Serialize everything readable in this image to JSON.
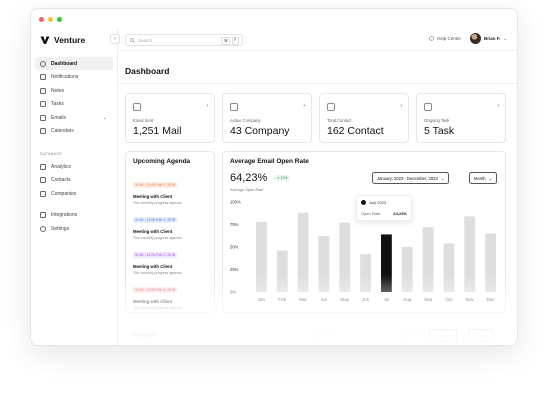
{
  "app": {
    "name": "Venture"
  },
  "window_controls": [
    "close",
    "minimize",
    "maximize"
  ],
  "sidebar": {
    "items": [
      {
        "label": "Dashboard",
        "icon": "dashboard-icon",
        "active": true
      },
      {
        "label": "Notifications",
        "icon": "bell-icon"
      },
      {
        "label": "Notes",
        "icon": "note-icon"
      },
      {
        "label": "Tasks",
        "icon": "checkbox-icon"
      },
      {
        "label": "Emails",
        "icon": "mail-icon",
        "expandable": true
      },
      {
        "label": "Calendars",
        "icon": "calendar-icon"
      }
    ],
    "database_label": "DATABASE",
    "database_items": [
      {
        "label": "Analytics",
        "icon": "analytics-icon"
      },
      {
        "label": "Contacts",
        "icon": "contacts-icon"
      },
      {
        "label": "Companies",
        "icon": "building-icon"
      }
    ],
    "bottom_items": [
      {
        "label": "Integrations",
        "icon": "integrations-icon"
      },
      {
        "label": "Settings",
        "icon": "gear-icon"
      }
    ]
  },
  "topbar": {
    "search_placeholder": "Search",
    "search_shortcut": [
      "⌘",
      "F"
    ],
    "help_label": "Help Center",
    "user_name": "Brian F."
  },
  "page": {
    "title": "Dashboard"
  },
  "stats": [
    {
      "label": "Email Sent",
      "value": "1,251 Mail",
      "icon": "mail-icon"
    },
    {
      "label": "Active Company",
      "value": "43 Company",
      "icon": "briefcase-icon"
    },
    {
      "label": "Total Contact",
      "value": "162 Contact",
      "icon": "contact-card-icon"
    },
    {
      "label": "Ongoing Task",
      "value": "5 Task",
      "icon": "clipboard-icon"
    }
  ],
  "agenda": {
    "title": "Upcoming Agenda",
    "items": [
      {
        "time": "11:00 - 12:00 Feb 2, 2078",
        "title": "Meeting with Client",
        "subtitle": "This monthly progress agenda",
        "color": "#e8743b",
        "bg": "#fdeee5"
      },
      {
        "time": "11:00 - 12:00 Feb 2, 2078",
        "title": "Meeting with Client",
        "subtitle": "This monthly progress agenda",
        "color": "#3b6fe8",
        "bg": "#e6edfd"
      },
      {
        "time": "11:00 - 12:00 Feb 2, 2078",
        "title": "Meeting with Client",
        "subtitle": "This monthly progress agenda",
        "color": "#9b4be0",
        "bg": "#f2e8fc"
      },
      {
        "time": "11:00 - 12:00 Feb 2, 2078",
        "title": "Meeting with Client",
        "subtitle": "This monthly progress agenda",
        "color": "#e23b3b",
        "bg": "#fde6e6"
      }
    ]
  },
  "email_chart": {
    "title": "Average Email Open Rate",
    "percent": "64,23%",
    "change": "12%",
    "percent_label": "Average Open Rate",
    "range_label": "January, 2023 - December, 2023",
    "period_label": "Month",
    "tooltip": {
      "date": "July 2023",
      "label": "Open Rate",
      "value": "64,23%"
    }
  },
  "chart_data": {
    "type": "bar",
    "categories": [
      "Jan",
      "Feb",
      "Mar",
      "Apr",
      "May",
      "Jun",
      "Jul",
      "Aug",
      "Sep",
      "Oct",
      "Nov",
      "Dec"
    ],
    "values": [
      78,
      46,
      88,
      62,
      77,
      42,
      64,
      50,
      72,
      54,
      84,
      65
    ],
    "highlight_index": 6,
    "ylim": [
      0,
      100
    ],
    "y_ticks": [
      "100%",
      "75%",
      "50%",
      "25%",
      "0%"
    ],
    "bar_color": "#dedede",
    "highlight_color": "#111111"
  },
  "people": {
    "title": "People",
    "search_placeholder": "Search",
    "search_shortcut": [
      "⌘",
      "F"
    ],
    "sort_label": "Sort By",
    "filter_label": "Filter"
  }
}
